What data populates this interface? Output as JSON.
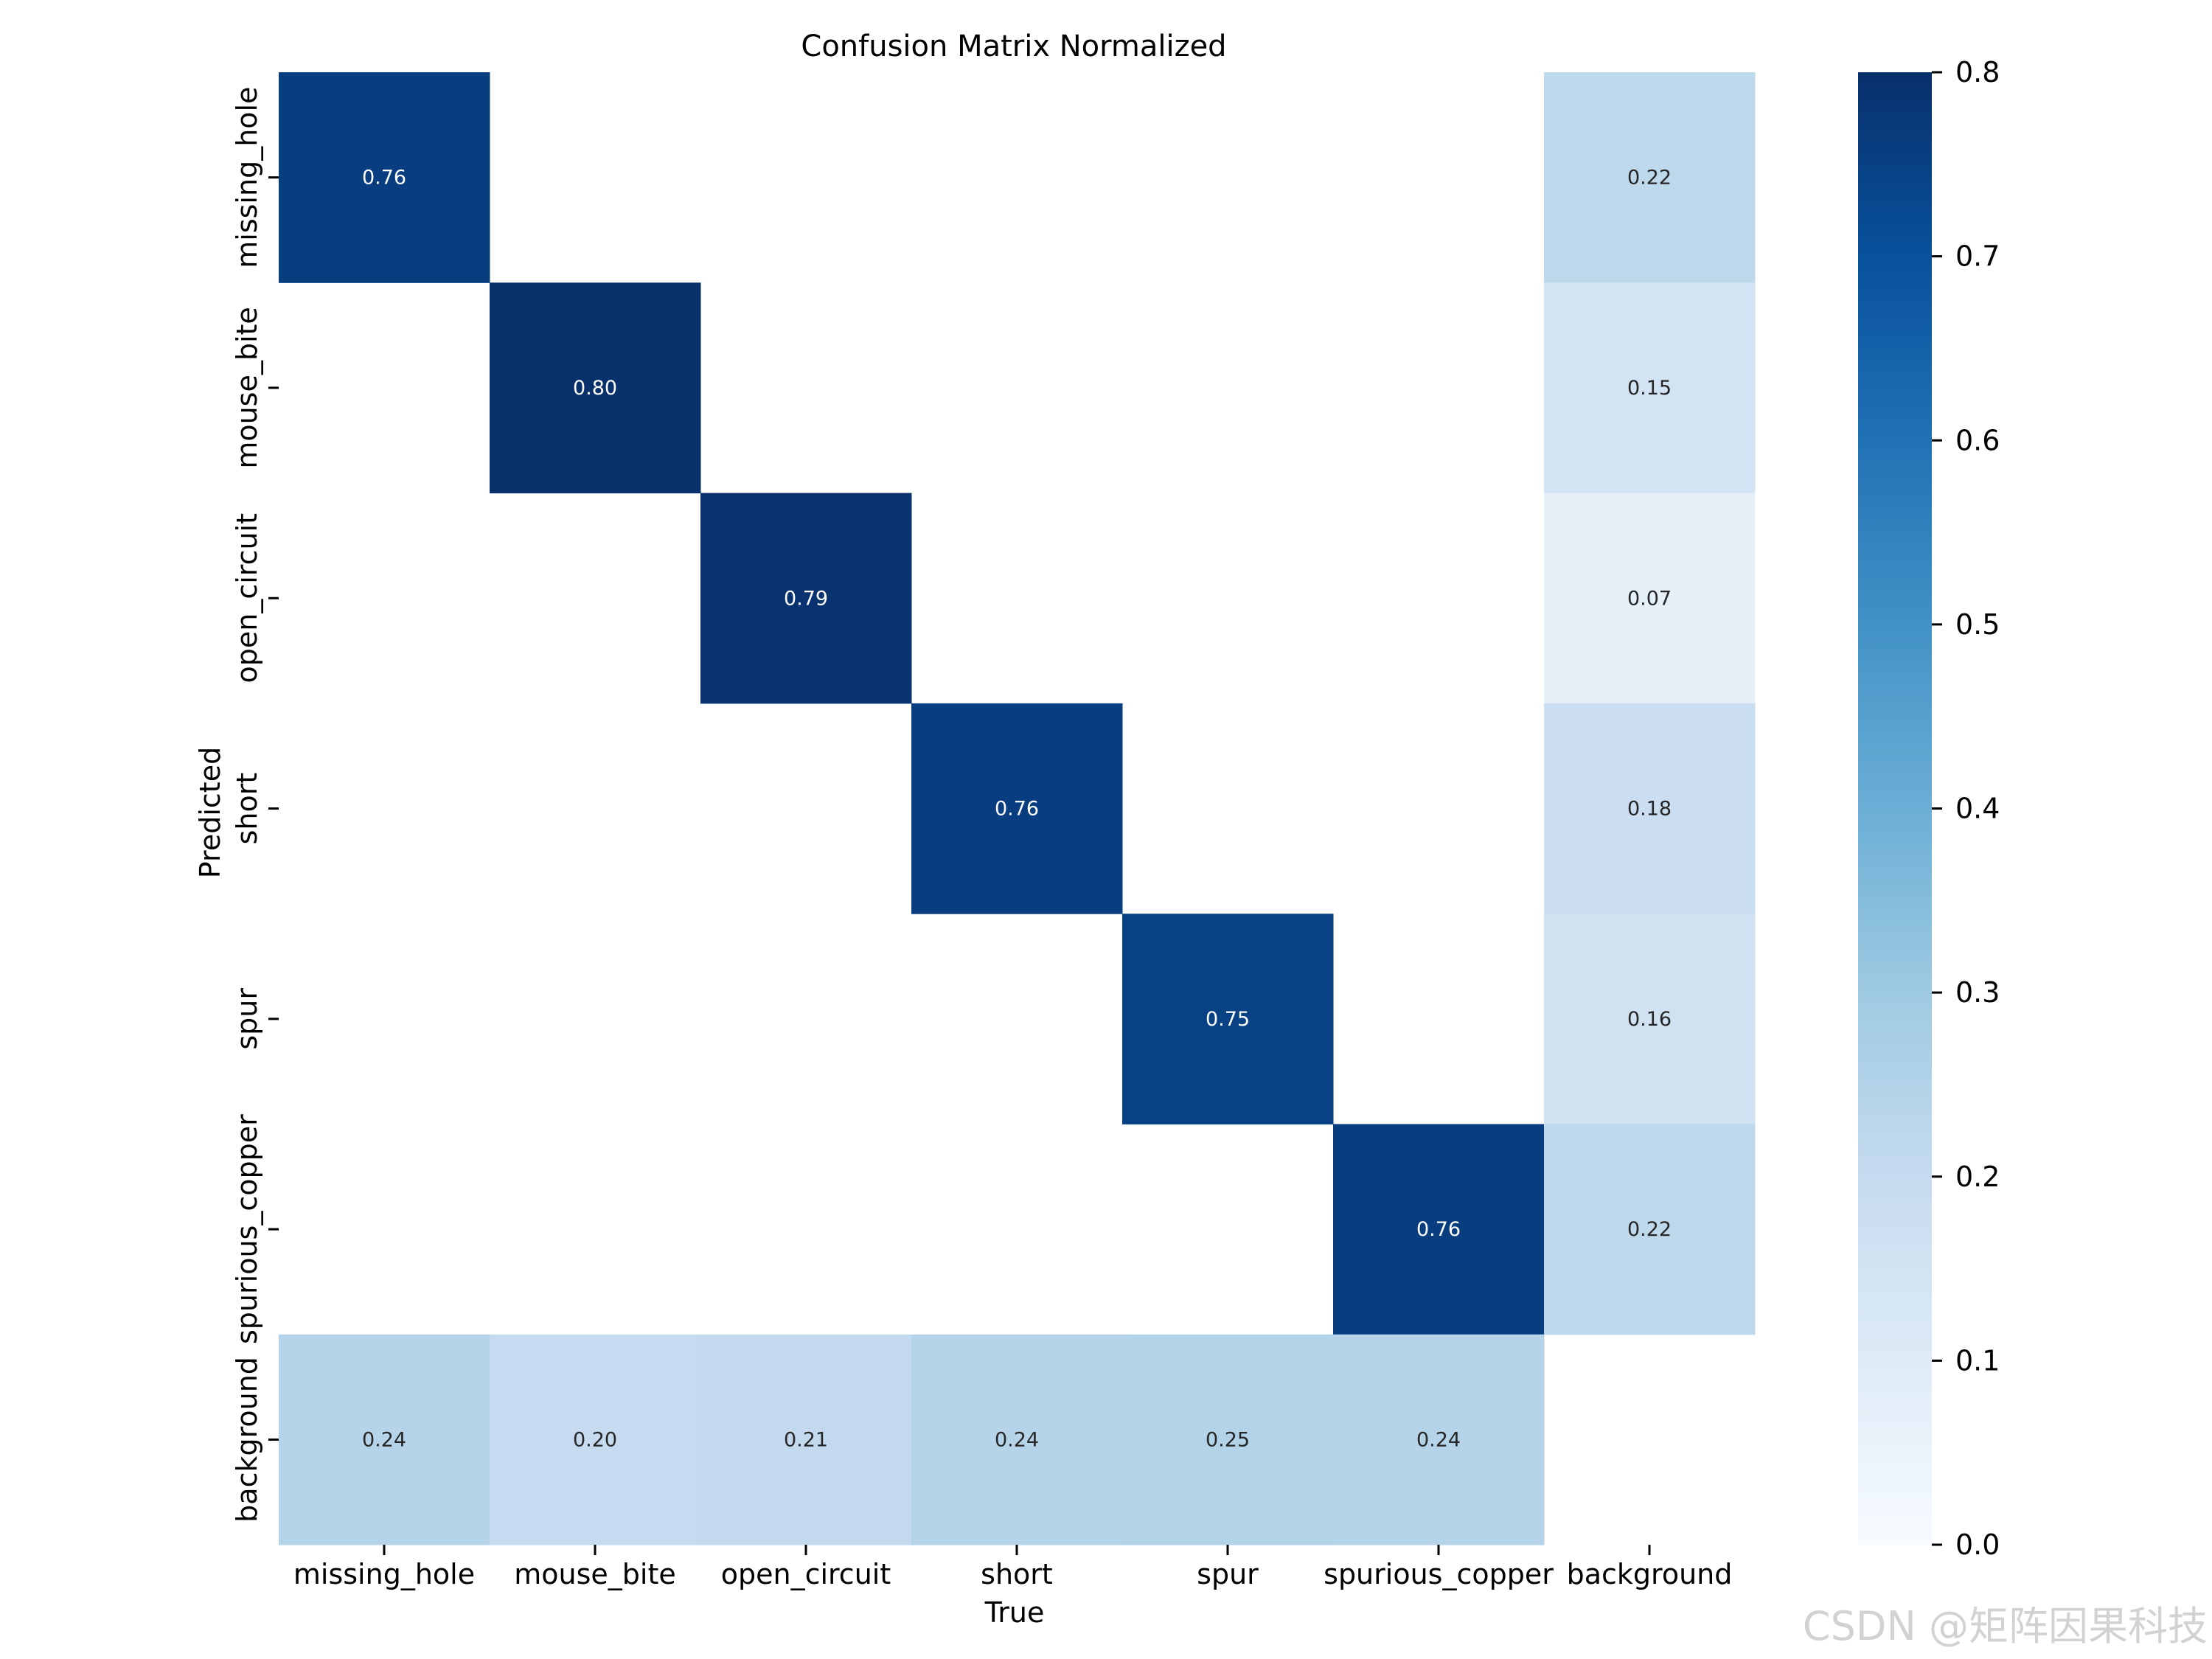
{
  "chart_data": {
    "type": "heatmap",
    "title": "Confusion Matrix Normalized",
    "xlabel": "True",
    "ylabel": "Predicted",
    "x_categories": [
      "missing_hole",
      "mouse_bite",
      "open_circuit",
      "short",
      "spur",
      "spurious_copper",
      "background"
    ],
    "y_categories": [
      "missing_hole",
      "mouse_bite",
      "open_circuit",
      "short",
      "spur",
      "spurious_copper",
      "background"
    ],
    "values": [
      [
        0.76,
        null,
        null,
        null,
        null,
        null,
        0.22
      ],
      [
        null,
        0.8,
        null,
        null,
        null,
        null,
        0.15
      ],
      [
        null,
        null,
        0.79,
        null,
        null,
        null,
        0.07
      ],
      [
        null,
        null,
        null,
        0.76,
        null,
        null,
        0.18
      ],
      [
        null,
        null,
        null,
        null,
        0.75,
        null,
        0.16
      ],
      [
        null,
        null,
        null,
        null,
        null,
        0.76,
        0.22
      ],
      [
        0.24,
        0.2,
        0.21,
        0.24,
        0.25,
        0.24,
        null
      ]
    ],
    "value_format": "0.00",
    "colormap": "Blues",
    "colorbar": {
      "range": [
        0.0,
        0.8
      ],
      "ticks": [
        "0.0",
        "0.1",
        "0.2",
        "0.3",
        "0.4",
        "0.5",
        "0.6",
        "0.7",
        "0.8"
      ]
    }
  },
  "watermark": "CSDN @矩阵因果科技"
}
